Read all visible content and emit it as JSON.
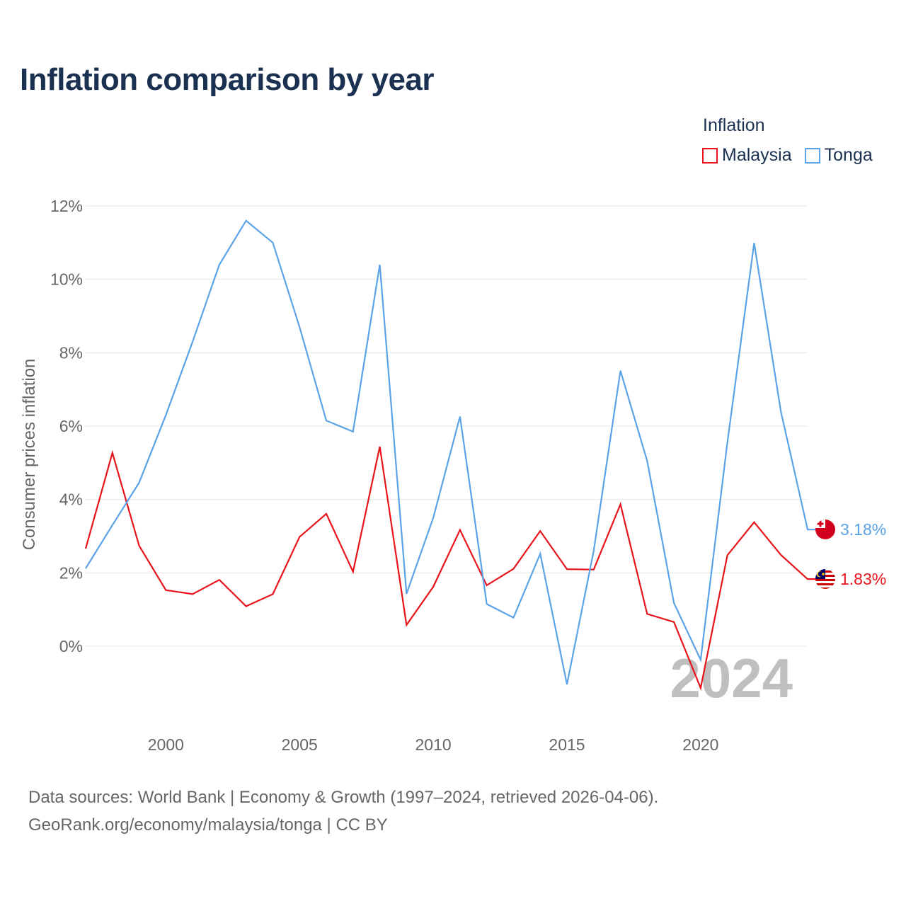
{
  "title": "Inflation comparison by year",
  "legend_title": "Inflation",
  "source_line1": "Data sources: World Bank | Economy & Growth (1997–2024, retrieved 2026-04-06).",
  "source_line2": "GeoRank.org/economy/malaysia/tonga | CC BY",
  "chart_data": {
    "type": "line",
    "title": "Inflation comparison by year",
    "xlabel": "",
    "ylabel": "Consumer prices inflation",
    "x": [
      1997,
      1998,
      1999,
      2000,
      2001,
      2002,
      2003,
      2004,
      2005,
      2006,
      2007,
      2008,
      2009,
      2010,
      2011,
      2012,
      2013,
      2014,
      2015,
      2016,
      2017,
      2018,
      2019,
      2020,
      2021,
      2022,
      2023,
      2024
    ],
    "xlim": [
      1997,
      2024
    ],
    "ylim": [
      -2,
      12
    ],
    "x_ticks": [
      "2000",
      "2005",
      "2010",
      "2015",
      "2020"
    ],
    "x_tick_values": [
      2000,
      2005,
      2010,
      2015,
      2020
    ],
    "y_ticks": [
      "12%",
      "10%",
      "8%",
      "6%",
      "4%",
      "2%",
      "0%"
    ],
    "y_tick_values": [
      12,
      10,
      8,
      6,
      4,
      2,
      0
    ],
    "grid": true,
    "legend_position": "top-right",
    "year_watermark": "2024",
    "series": [
      {
        "name": "Malaysia",
        "color": "#e8141c",
        "icon": "malaysia-flag-icon",
        "end_label": "1.83%",
        "values": [
          2.66,
          5.27,
          2.74,
          1.53,
          1.42,
          1.81,
          1.09,
          1.42,
          2.98,
          3.61,
          2.03,
          5.44,
          0.58,
          1.62,
          3.17,
          1.66,
          2.11,
          3.14,
          2.1,
          2.09,
          3.87,
          0.88,
          0.66,
          -1.14,
          2.48,
          3.38,
          2.49,
          1.83
        ]
      },
      {
        "name": "Tonga",
        "color": "#5ba3e6",
        "icon": "tonga-flag-icon",
        "end_label": "3.18%",
        "values": [
          2.12,
          3.3,
          4.46,
          6.3,
          8.3,
          10.4,
          11.6,
          11.0,
          8.7,
          6.15,
          5.85,
          10.4,
          1.43,
          3.5,
          6.26,
          1.15,
          0.78,
          2.52,
          -1.04,
          2.6,
          7.51,
          5.05,
          1.18,
          -0.37,
          5.56,
          10.99,
          6.4,
          3.18
        ]
      }
    ]
  }
}
